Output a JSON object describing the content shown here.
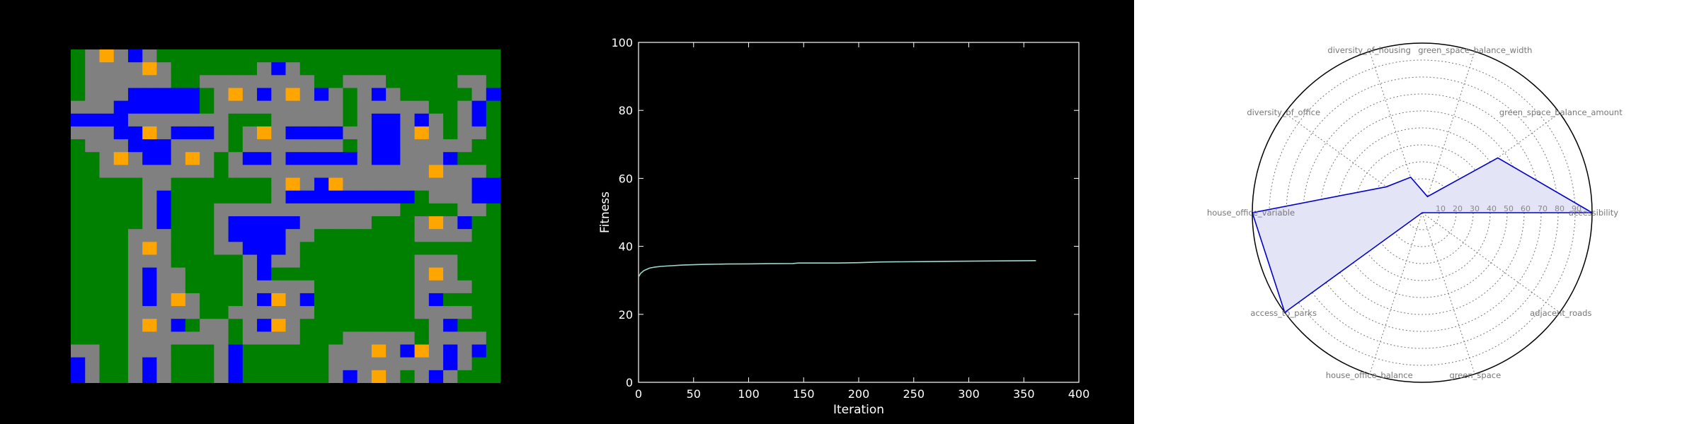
{
  "colors": {
    "grass": "#008000",
    "road": "#808080",
    "house": "#FFA500",
    "office": "#0000FF",
    "fitness_line": "#9ed8cc",
    "radar_fill": "#e4e4f7",
    "radar_line": "#0000CC"
  },
  "chart_data": [
    {
      "type": "heatmap",
      "cell_legend": {
        "G": "green_space",
        "R": "road",
        "H": "house",
        "O": "office"
      },
      "grid": [
        "GRHRORGGGGGGGGGGGGGGGGGGGGGGG",
        "GRRRRHRGGGGGGRORGGGGGGGGGGGGG",
        "GRRRRRRGGRRRRRRRRGGRRRGGGGGRR",
        "GRRROOOOOGRHRORHRORGRORGGGGGRO",
        "RRROOOOOOGRRRRRRRRRGRRRRRGGRO",
        "OOOORRRRRRRGGGRRRRRGROORORGRO",
        "RRROOHROOORGRHROOOORROORHRGRR",
        "GRRROOORRRRGRRRRRRRGROORRRRRG",
        "GGRHROORHRGROOROOOOOROORRROGG",
        "GGRRRRRRRRGRRRRRRRRRRRRRRHRRR",
        "GGGGGRRGGGGGGGRHROHRRRRRRRRROO",
        "GGGGGROGGGGGGGROOOOOOOOOGRRROO",
        "GGGGGROGGGRRRRRRRRRRRRRGGGGRR",
        "GGGGGROGGGROOOOORRRRRGGGRHROGG",
        "GGGGRRRGGGROOOORRGGGGGGGRRRRGG",
        "GGGGRHRGGGRROOORGGGGGGGGGGGGG",
        "GGGGRRRGGGGGRORRGGGGGGGGRRRGG",
        "GGGGRORRGGGGROGGGGGGGGGGRHRGG",
        "GGGGRORRGGGGRRRRRGGGGGGGRRRRGG",
        "GGGGRORHRGGGROHROGGGGGGGROGGG",
        "GGGGRRRRRGGRRRRRRGGGGGGGRRRRG",
        "GGGGRHROGRRGROHRGGGGGGGGGROGG",
        "GGGGRRRRRRRGRRRRGGGRRRRRGRRRR",
        "RRGGRRRGGGROGGGGGGRRRHROHROROG",
        "ORGGRORGGGROGGGGGGRRRRRRRRORGG",
        "ORGGRORGGGROGGGGGGRORHRGRORGG"
      ]
    },
    {
      "type": "line",
      "xlabel": "Iteration",
      "ylabel": "Fitness",
      "xlim": [
        0,
        400
      ],
      "ylim": [
        0,
        100
      ],
      "xticks": [
        0,
        50,
        100,
        150,
        200,
        250,
        300,
        350,
        400
      ],
      "yticks": [
        0,
        20,
        40,
        60,
        80,
        100
      ],
      "x": [
        0,
        2,
        5,
        10,
        15,
        20,
        30,
        40,
        50,
        60,
        80,
        100,
        120,
        140,
        145,
        180,
        200,
        220,
        260,
        280,
        320,
        361
      ],
      "y": [
        31.0,
        32.1,
        32.9,
        33.6,
        33.9,
        34.1,
        34.3,
        34.5,
        34.6,
        34.7,
        34.8,
        34.85,
        34.9,
        34.95,
        35.1,
        35.1,
        35.2,
        35.4,
        35.5,
        35.6,
        35.7,
        35.8
      ]
    },
    {
      "type": "radar",
      "axes": [
        "accessibility",
        "green_space_balance_amount",
        "green_space_balance_width",
        "diversity_of_housing",
        "diversity_of_office",
        "house_office_variable",
        "access_to_parks",
        "house_office_balance",
        "green_space",
        "adjacent_roads"
      ],
      "rlim": [
        0,
        100
      ],
      "rticks": [
        10,
        20,
        30,
        40,
        50,
        60,
        70,
        80,
        90
      ],
      "values": [
        100,
        55,
        10,
        22,
        26,
        100,
        100,
        0,
        0,
        0
      ],
      "grid": "dotted"
    }
  ]
}
